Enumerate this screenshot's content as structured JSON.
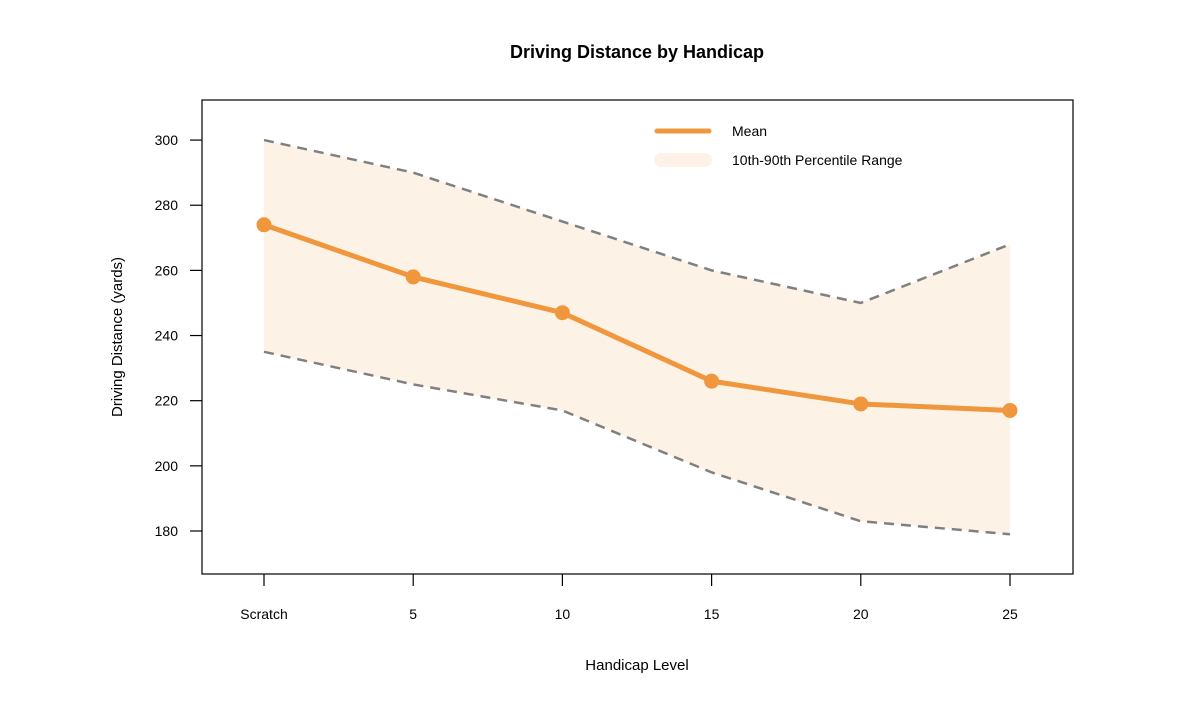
{
  "chart_data": {
    "type": "line",
    "title": "Driving Distance by Handicap",
    "xlabel": "Handicap Level",
    "ylabel": "Driving Distance (yards)",
    "categories": [
      "Scratch",
      "5",
      "10",
      "15",
      "20",
      "25"
    ],
    "yticks": [
      180,
      200,
      220,
      240,
      260,
      280,
      300
    ],
    "ylim": [
      166.8,
      312.3
    ],
    "grid": false,
    "legend_placement": "top-right",
    "series": [
      {
        "name": "Mean",
        "values": [
          274,
          258,
          247,
          226,
          219,
          217
        ],
        "color": "#F0963C"
      },
      {
        "name": "10th-90th Percentile Range",
        "upper": [
          300,
          290,
          275,
          260,
          250,
          268
        ],
        "lower": [
          235,
          225,
          217,
          198,
          183,
          179
        ],
        "color": "#FDF2E6",
        "bound_line_color": "#808080"
      }
    ]
  }
}
